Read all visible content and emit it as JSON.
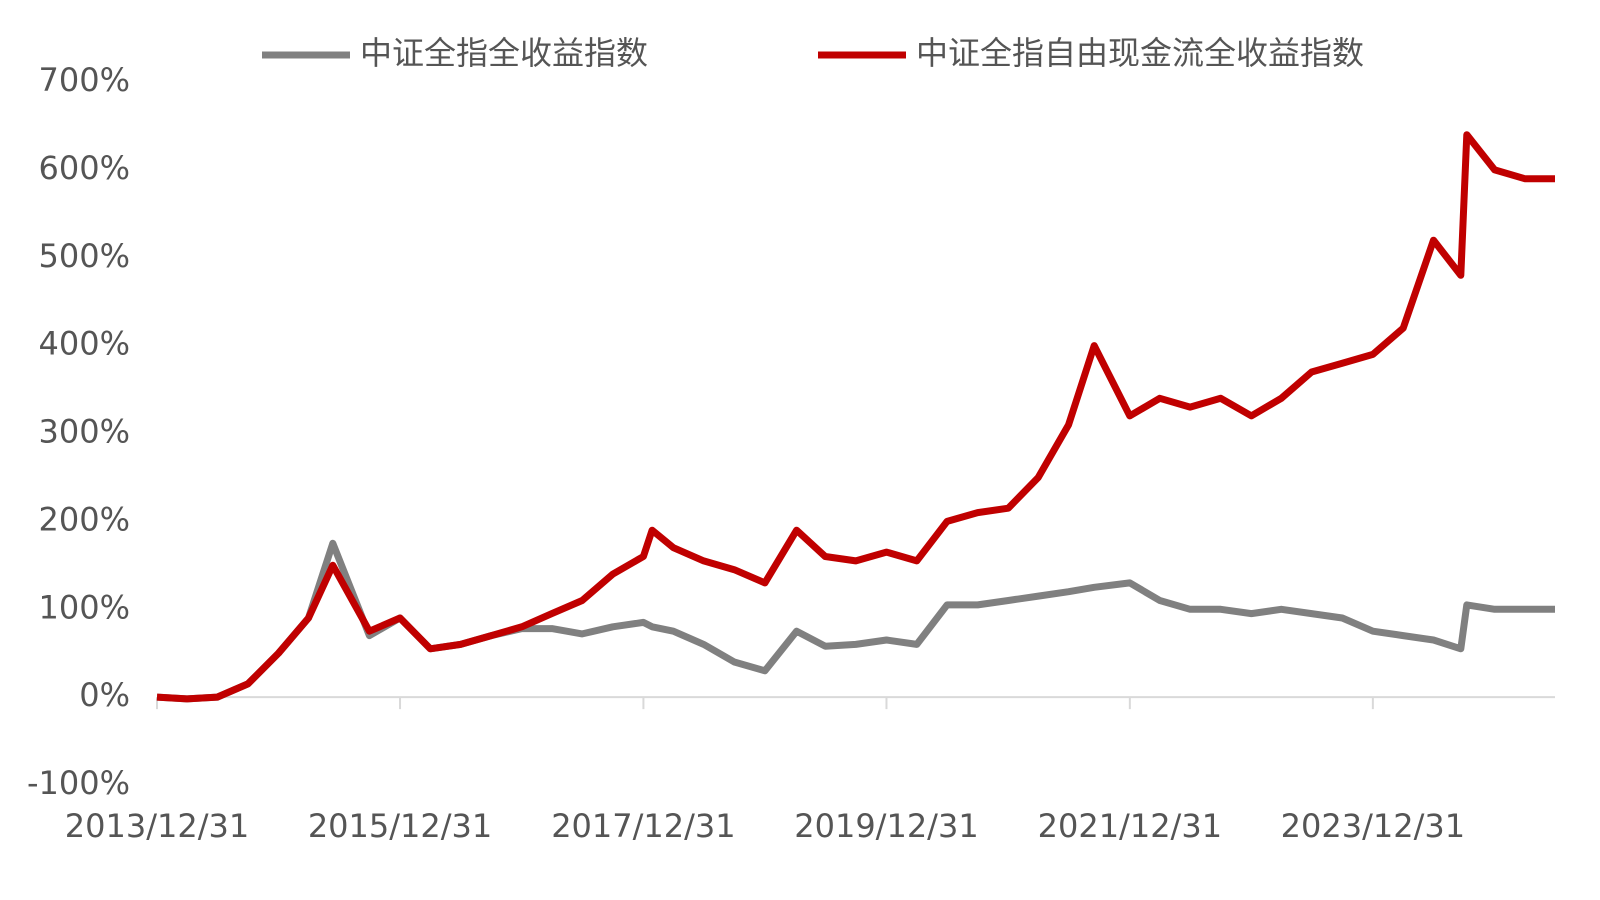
{
  "chart_data": {
    "type": "line",
    "x": [
      "2013/12/31",
      "2014/03/31",
      "2014/06/30",
      "2014/09/30",
      "2014/12/31",
      "2015/03/31",
      "2015/06/12",
      "2015/09/30",
      "2015/12/31",
      "2016/03/31",
      "2016/06/30",
      "2016/09/30",
      "2016/12/31",
      "2017/03/31",
      "2017/06/30",
      "2017/09/30",
      "2017/12/31",
      "2018/01/26",
      "2018/03/31",
      "2018/06/30",
      "2018/09/30",
      "2018/12/31",
      "2019/04/05",
      "2019/06/30",
      "2019/09/30",
      "2019/12/31",
      "2020/03/31",
      "2020/06/30",
      "2020/09/30",
      "2020/12/31",
      "2021/03/31",
      "2021/06/30",
      "2021/09/15",
      "2021/12/31",
      "2022/03/31",
      "2022/06/30",
      "2022/09/30",
      "2022/12/31",
      "2023/03/31",
      "2023/06/30",
      "2023/09/30",
      "2023/12/31",
      "2024/03/31",
      "2024/06/30",
      "2024/09/20",
      "2024/10/08",
      "2024/12/31",
      "2025/03/31",
      "2025/06/30"
    ],
    "series": [
      {
        "name": "中证全指全收益指数",
        "color": "#808080",
        "values": [
          0,
          -2,
          0,
          15,
          50,
          90,
          175,
          70,
          90,
          55,
          60,
          70,
          78,
          78,
          72,
          80,
          85,
          80,
          75,
          60,
          40,
          30,
          75,
          58,
          60,
          65,
          60,
          105,
          105,
          110,
          115,
          120,
          125,
          130,
          110,
          100,
          100,
          95,
          100,
          95,
          90,
          75,
          70,
          65,
          55,
          105,
          100,
          100,
          100
        ]
      },
      {
        "name": "中证全指自由现金流全收益指数",
        "color": "#c00000",
        "values": [
          0,
          -2,
          0,
          15,
          50,
          90,
          150,
          75,
          90,
          55,
          60,
          70,
          80,
          95,
          110,
          140,
          160,
          190,
          170,
          155,
          145,
          130,
          190,
          160,
          155,
          165,
          155,
          200,
          210,
          215,
          250,
          310,
          400,
          320,
          340,
          330,
          340,
          320,
          340,
          370,
          380,
          390,
          420,
          520,
          480,
          640,
          600,
          590,
          590
        ]
      }
    ],
    "xlim": [
      "2013/12/31",
      "2025/06/30"
    ],
    "xticks": [
      "2013/12/31",
      "2015/12/31",
      "2017/12/31",
      "2019/12/31",
      "2021/12/31",
      "2023/12/31"
    ],
    "ylim": [
      -100,
      700
    ],
    "yticks": [
      {
        "value": -100,
        "label": "-100%"
      },
      {
        "value": 0,
        "label": "0%"
      },
      {
        "value": 100,
        "label": "100%"
      },
      {
        "value": 200,
        "label": "200%"
      },
      {
        "value": 300,
        "label": "300%"
      },
      {
        "value": 400,
        "label": "400%"
      },
      {
        "value": 500,
        "label": "500%"
      },
      {
        "value": 600,
        "label": "600%"
      },
      {
        "value": 700,
        "label": "700%"
      }
    ],
    "legend": "top"
  }
}
